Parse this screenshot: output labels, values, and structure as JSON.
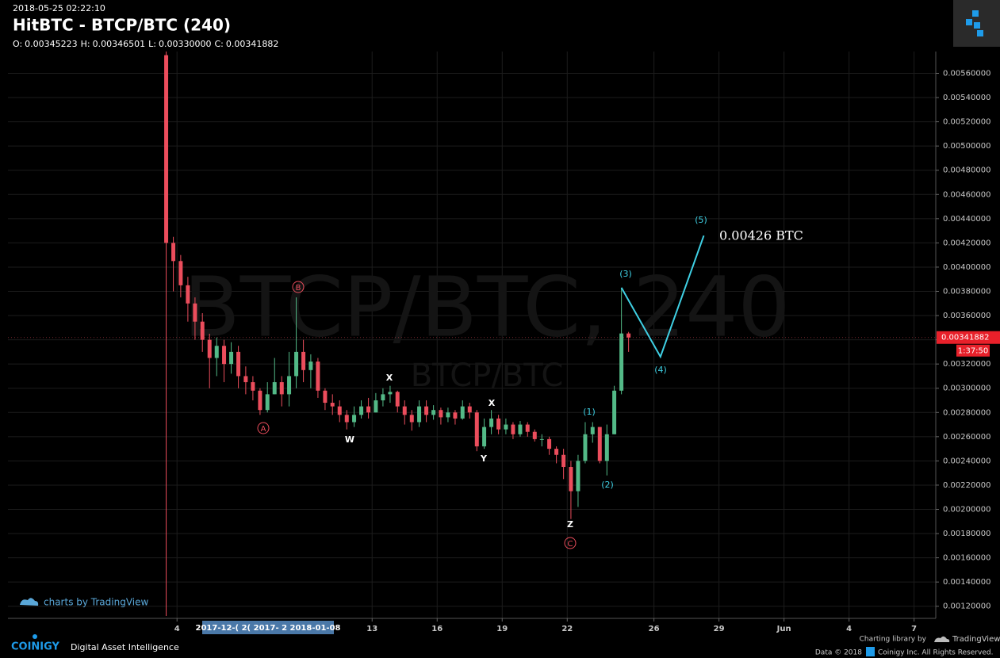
{
  "chart_data": {
    "type": "candlestick",
    "timestamp": "2018-05-25 02:22:10",
    "title": "HitBTC - BTCP/BTC (240)",
    "ohlc_header": [
      {
        "label": "O:",
        "value": "0.00345223"
      },
      {
        "label": "H:",
        "value": "0.00346501"
      },
      {
        "label": "L:",
        "value": "0.00330000"
      },
      {
        "label": "C:",
        "value": "0.00341882"
      }
    ],
    "watermark": "BTCP/BTC, 240",
    "watermark_sub": "BTCP/BTC",
    "up_color": "#53b987",
    "down_color": "#eb4d5c",
    "grid": true,
    "x": [
      3.5,
      3.83,
      4.17,
      4.5,
      4.83,
      5.17,
      5.5,
      5.83,
      6.17,
      6.5,
      6.83,
      7.17,
      7.5,
      7.83,
      8.17,
      8.5,
      8.83,
      9.17,
      9.5,
      9.83,
      10.17,
      10.5,
      10.83,
      11.17,
      11.5,
      11.83,
      12.17,
      12.5,
      12.83,
      13.17,
      13.5,
      13.83,
      14.17,
      14.5,
      14.83,
      15.17,
      15.5,
      15.83,
      16.17,
      16.5,
      16.83,
      17.17,
      17.5,
      17.83,
      18.17,
      18.5,
      18.83,
      19.17,
      19.5,
      19.83,
      20.17,
      20.5,
      20.83,
      21.17,
      21.5,
      21.83,
      22.17,
      22.5,
      22.83,
      23.17,
      23.5,
      23.83,
      24.17,
      24.5,
      24.83
    ],
    "open": [
      0.00575,
      0.0042,
      0.00405,
      0.00385,
      0.0037,
      0.00355,
      0.0034,
      0.00325,
      0.00335,
      0.0032,
      0.0033,
      0.0031,
      0.00305,
      0.00298,
      0.00282,
      0.00295,
      0.00305,
      0.00295,
      0.0031,
      0.0033,
      0.00315,
      0.00322,
      0.00298,
      0.00288,
      0.00285,
      0.00278,
      0.00272,
      0.00278,
      0.00285,
      0.0028,
      0.0029,
      0.00295,
      0.00297,
      0.00285,
      0.00278,
      0.00272,
      0.00285,
      0.00278,
      0.00282,
      0.00276,
      0.0028,
      0.00275,
      0.00285,
      0.0028,
      0.00252,
      0.00268,
      0.00275,
      0.00266,
      0.0027,
      0.00262,
      0.0027,
      0.00264,
      0.00258,
      0.00258,
      0.0025,
      0.00245,
      0.00235,
      0.00215,
      0.0024,
      0.00262,
      0.00268,
      0.0024,
      0.00262,
      0.00298,
      0.00345223
    ],
    "high": [
      0.00578,
      0.00425,
      0.0041,
      0.00392,
      0.00375,
      0.00362,
      0.00345,
      0.00342,
      0.0034,
      0.00338,
      0.00335,
      0.00318,
      0.0031,
      0.003,
      0.00305,
      0.00325,
      0.0031,
      0.0033,
      0.00375,
      0.0034,
      0.00328,
      0.00325,
      0.003,
      0.00295,
      0.0029,
      0.00282,
      0.00285,
      0.0029,
      0.00292,
      0.00296,
      0.003,
      0.00302,
      0.00298,
      0.0029,
      0.00282,
      0.0029,
      0.0029,
      0.00286,
      0.00284,
      0.00284,
      0.00282,
      0.0029,
      0.00288,
      0.00282,
      0.00275,
      0.00282,
      0.00278,
      0.00275,
      0.00272,
      0.00273,
      0.00272,
      0.00266,
      0.00262,
      0.0026,
      0.00252,
      0.0025,
      0.0024,
      0.00245,
      0.00272,
      0.00272,
      0.00268,
      0.0027,
      0.00302,
      0.00383,
      0.00346501
    ],
    "low": [
      0.00112,
      0.0038,
      0.00375,
      0.00355,
      0.0034,
      0.0033,
      0.003,
      0.0031,
      0.00305,
      0.00312,
      0.003,
      0.00295,
      0.0029,
      0.00278,
      0.0028,
      0.00295,
      0.00285,
      0.00285,
      0.003,
      0.00305,
      0.003,
      0.00292,
      0.00282,
      0.00278,
      0.00272,
      0.00266,
      0.00268,
      0.00275,
      0.00275,
      0.0028,
      0.00285,
      0.00288,
      0.0028,
      0.0027,
      0.00265,
      0.00268,
      0.00272,
      0.00274,
      0.0027,
      0.00272,
      0.0027,
      0.00274,
      0.00275,
      0.00248,
      0.0025,
      0.00262,
      0.00262,
      0.00262,
      0.00258,
      0.0026,
      0.0026,
      0.00256,
      0.00252,
      0.00245,
      0.00238,
      0.00225,
      0.00192,
      0.00202,
      0.00238,
      0.00255,
      0.00238,
      0.00228,
      0.00262,
      0.00295,
      0.0033
    ],
    "close": [
      0.0042,
      0.00405,
      0.00385,
      0.0037,
      0.00355,
      0.0034,
      0.00325,
      0.00335,
      0.0032,
      0.0033,
      0.0031,
      0.00305,
      0.00298,
      0.00282,
      0.00295,
      0.00305,
      0.00295,
      0.0031,
      0.0033,
      0.00315,
      0.00322,
      0.00298,
      0.00288,
      0.00285,
      0.00278,
      0.00272,
      0.00278,
      0.00285,
      0.0028,
      0.0029,
      0.00295,
      0.00297,
      0.00285,
      0.00278,
      0.00272,
      0.00285,
      0.00278,
      0.00282,
      0.00276,
      0.0028,
      0.00275,
      0.00285,
      0.0028,
      0.00252,
      0.00268,
      0.00275,
      0.00266,
      0.0027,
      0.00262,
      0.0027,
      0.00264,
      0.00258,
      0.00258,
      0.0025,
      0.00245,
      0.00235,
      0.00215,
      0.0024,
      0.00262,
      0.00268,
      0.0024,
      0.00262,
      0.00298,
      0.00345223,
      0.00341882
    ],
    "projection": {
      "color": "#3fd0e4",
      "x": [
        24.5,
        26.3,
        28.3
      ],
      "values": [
        0.00383,
        0.00326,
        0.00426
      ]
    },
    "projection_label": "0.00426 BTC",
    "wave_labels": [
      "A",
      "B",
      "C",
      "W",
      "X",
      "Y",
      "X",
      "Z",
      "(1)",
      "(2)",
      "(3)",
      "(4)",
      "(5)"
    ],
    "last_price_label": "0.00341882",
    "countdown": "1:37:50",
    "xlim": [
      -3.8,
      39
    ],
    "xticks": [
      4,
      13,
      16,
      19,
      22,
      26,
      29,
      {
        "value": 32,
        "label": "Jun"
      },
      {
        "value": 35,
        "label": "4"
      },
      {
        "value": 38,
        "label": "7"
      }
    ],
    "x_highlight_label": "2017-12-( 2( 2017- 2 2018-01-08",
    "ylim": [
      0.0011,
      0.00578
    ],
    "yticks": [
      {
        "value": 0.0012,
        "label": "0.00120000"
      },
      {
        "value": 0.0014,
        "label": "0.00140000"
      },
      {
        "value": 0.0016,
        "label": "0.00160000"
      },
      {
        "value": 0.0018,
        "label": "0.00180000"
      },
      {
        "value": 0.002,
        "label": "0.00200000"
      },
      {
        "value": 0.0022,
        "label": "0.00220000"
      },
      {
        "value": 0.0024,
        "label": "0.00240000"
      },
      {
        "value": 0.0026,
        "label": "0.00260000"
      },
      {
        "value": 0.0028,
        "label": "0.00280000"
      },
      {
        "value": 0.003,
        "label": "0.00300000"
      },
      {
        "value": 0.0032,
        "label": "0.00320000"
      },
      {
        "value": 0.0034,
        "label": "0.00340000"
      },
      {
        "value": 0.0036,
        "label": "0.00360000"
      },
      {
        "value": 0.0038,
        "label": "0.00380000"
      },
      {
        "value": 0.004,
        "label": "0.00400000"
      },
      {
        "value": 0.0042,
        "label": "0.00420000"
      },
      {
        "value": 0.0044,
        "label": "0.00440000"
      },
      {
        "value": 0.0046,
        "label": "0.00460000"
      },
      {
        "value": 0.0048,
        "label": "0.00480000"
      },
      {
        "value": 0.005,
        "label": "0.00500000"
      },
      {
        "value": 0.0052,
        "label": "0.00520000"
      },
      {
        "value": 0.0054,
        "label": "0.00540000"
      },
      {
        "value": 0.0056,
        "label": "0.00560000"
      }
    ],
    "footer": {
      "tv_badge": "charts by TradingView",
      "brand": "COINIGY",
      "tagline": "Digital Asset Intelligence",
      "library": "Charting library by",
      "library_brand": "TradingView",
      "data_note": "Data © 2018",
      "rights": "Coinigy Inc. All Rights Reserved."
    }
  }
}
